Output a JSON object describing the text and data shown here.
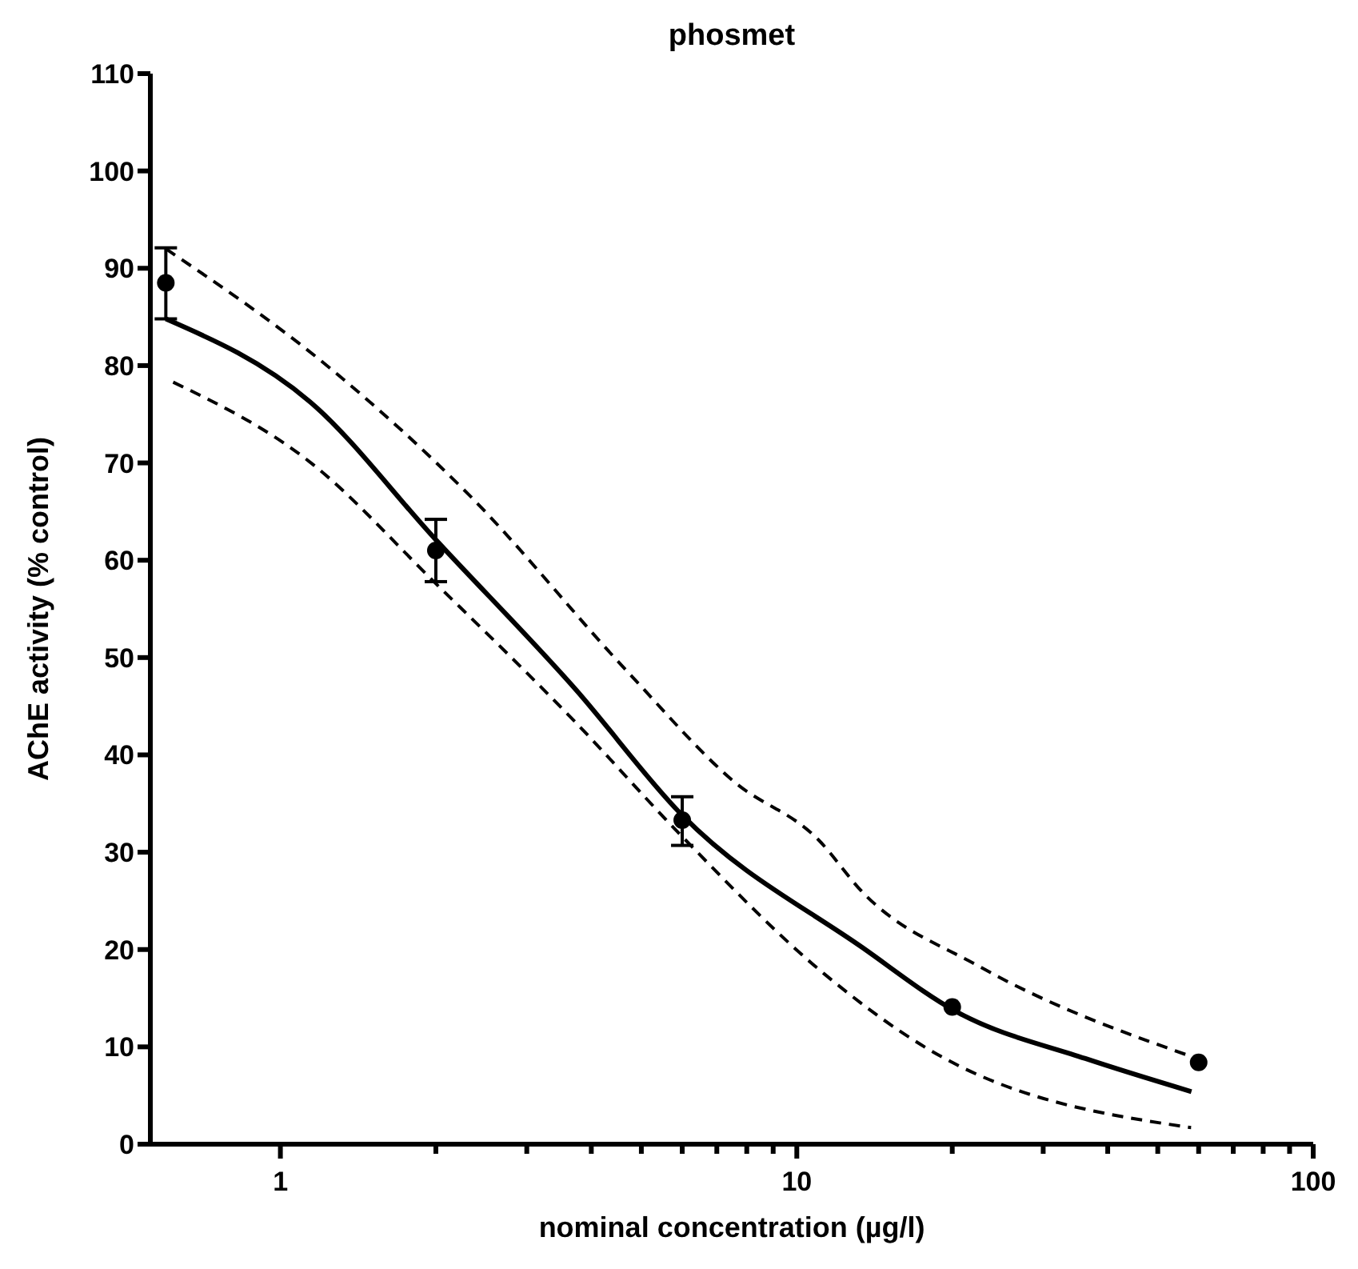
{
  "chart_data": {
    "type": "line",
    "title": "phosmet",
    "xlabel": "nominal concentration (µg/l)",
    "ylabel": "AChE activity (% control)",
    "log": "x",
    "xlim": [
      0.56,
      100
    ],
    "xticks": [
      {
        "value": 1,
        "label": "1"
      },
      {
        "value": 2,
        "label": null
      },
      {
        "value": 3,
        "label": null
      },
      {
        "value": 4,
        "label": null
      },
      {
        "value": 5,
        "label": null
      },
      {
        "value": 6,
        "label": null
      },
      {
        "value": 7,
        "label": null
      },
      {
        "value": 8,
        "label": null
      },
      {
        "value": 9,
        "label": null
      },
      {
        "value": 10,
        "label": "10"
      },
      {
        "value": 20,
        "label": null
      },
      {
        "value": 30,
        "label": null
      },
      {
        "value": 40,
        "label": null
      },
      {
        "value": 50,
        "label": null
      },
      {
        "value": 60,
        "label": null
      },
      {
        "value": 70,
        "label": null
      },
      {
        "value": 80,
        "label": null
      },
      {
        "value": 90,
        "label": null
      },
      {
        "value": 100,
        "label": "100"
      }
    ],
    "ylim": [
      0,
      110
    ],
    "yticks": [
      0,
      10,
      20,
      30,
      40,
      50,
      60,
      70,
      80,
      90,
      100,
      110
    ],
    "grid": false,
    "series": [
      {
        "color": "#000000",
        "line_style": "solid",
        "marker": "none",
        "x": [
          0.6,
          1.14,
          2.0,
          3.72,
          6,
          13.4,
          20.4,
          36.2,
          58.1
        ],
        "values": [
          84.8,
          76.3,
          62.1,
          46.8,
          33.8,
          20.2,
          13.6,
          8.8,
          5.4
        ]
      },
      {
        "color": "#000000",
        "line_style": "dashed",
        "marker": "none",
        "x": [
          0.6,
          1.25,
          2.32,
          4.71,
          7.58,
          11.0,
          13.4,
          22.5,
          59.6
        ],
        "values": [
          92,
          79.7,
          66.7,
          48.5,
          37.2,
          31.3,
          25.9,
          18.3,
          8.8
        ]
      },
      {
        "color": "#000000",
        "line_style": "dashed",
        "marker": "none",
        "x": [
          0.62,
          1.14,
          2.0,
          3.72,
          6,
          11.3,
          17.8,
          58
        ],
        "values": [
          78.3,
          70.1,
          57.6,
          43.4,
          31.6,
          17.5,
          9.9,
          1.7
        ]
      },
      {
        "type": "scatter",
        "color": "#000000",
        "marker": "circle",
        "x": [
          0.6,
          2,
          6,
          20,
          60
        ],
        "values": [
          88.5,
          61.0,
          33.3,
          14.1,
          8.4
        ],
        "errors": [
          [
            84.8,
            92.1
          ],
          [
            57.8,
            64.2
          ],
          [
            30.7,
            35.7
          ],
          null,
          null
        ]
      }
    ]
  }
}
